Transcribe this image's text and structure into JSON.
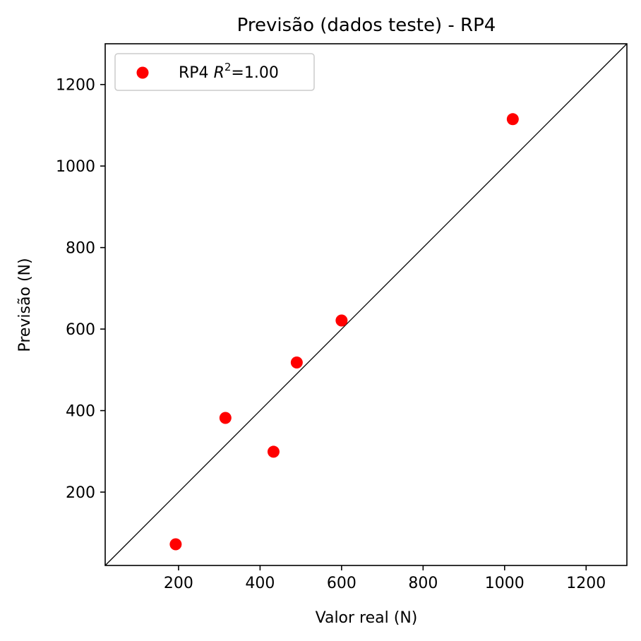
{
  "chart_data": {
    "type": "scatter",
    "title": "Previsão (dados teste) - RP4",
    "xlabel": "Valor real (N)",
    "ylabel": "Previsão (N)",
    "xlim": [
      20,
      1300
    ],
    "ylim": [
      20,
      1300
    ],
    "xticks": [
      200,
      400,
      600,
      800,
      1000,
      1200
    ],
    "yticks": [
      200,
      400,
      600,
      800,
      1000,
      1200
    ],
    "grid": false,
    "legend_position": "top-left",
    "reference_line": "y = x",
    "series": [
      {
        "name": "RP4",
        "legend_suffix": "=1.00",
        "color": "#ff0000",
        "points": [
          {
            "x": 193,
            "y": 72
          },
          {
            "x": 315,
            "y": 382
          },
          {
            "x": 433,
            "y": 299
          },
          {
            "x": 490,
            "y": 518
          },
          {
            "x": 600,
            "y": 621
          },
          {
            "x": 1020,
            "y": 1115
          }
        ]
      }
    ]
  }
}
